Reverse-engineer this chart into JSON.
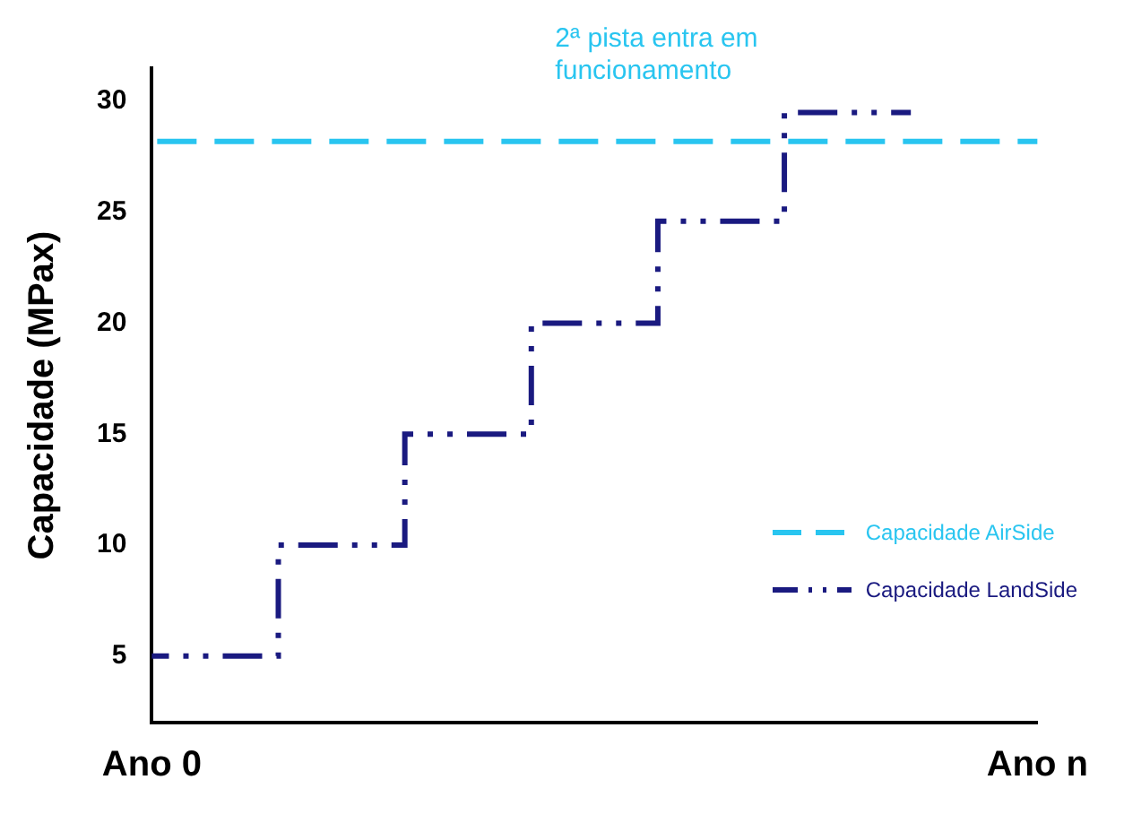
{
  "chart_data": {
    "type": "step",
    "ylabel": "Capacidade (MPax)",
    "annotations": [
      "2ª pista entra em funcionamento"
    ],
    "categories": [
      "Ano 0",
      null,
      null,
      null,
      null,
      null,
      null,
      "Ano n"
    ],
    "ylim": [
      2,
      31.5
    ],
    "yticks": [
      5,
      10,
      15,
      20,
      25,
      30
    ],
    "grid": false,
    "legend": "right",
    "marker": "none",
    "series": [
      {
        "name": "Capacidade AirSide",
        "type": "line",
        "color": "#29c5f0",
        "line_style": "dashed",
        "values": [
          28.2,
          28.2,
          28.2,
          28.2,
          28.2,
          28.2,
          28.2,
          28.2
        ]
      },
      {
        "name": "Capacidade LandSide",
        "type": "step",
        "color": "#1a1a80",
        "line_style": "dashed",
        "values": [
          5,
          10,
          15,
          20,
          24.6,
          29.5,
          29.5,
          null
        ]
      }
    ]
  }
}
